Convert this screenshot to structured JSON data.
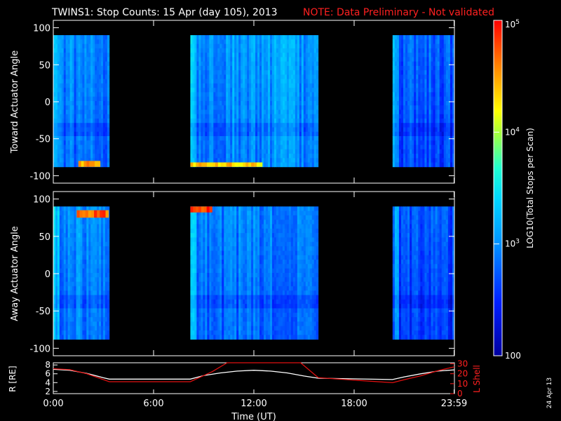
{
  "header": {
    "title": "TWINS1: Stop Counts: 15 Apr (day 105), 2013",
    "note": "NOTE: Data Preliminary - Not validated"
  },
  "side_date": "24 Apr 13",
  "colors": {
    "background": "#000000",
    "axes": "#ffffff",
    "note": "#ff2020",
    "r_line": "#ffffff",
    "lshell_line": "#e01010"
  },
  "colorbar": {
    "label": "LOG10(Total Stops per Scan)",
    "scale": "log",
    "range": [
      100,
      100000
    ],
    "ticks": [
      {
        "value": 100,
        "label": "100"
      },
      {
        "value": 1000,
        "label": "10^3"
      },
      {
        "value": 10000,
        "label": "10^4"
      },
      {
        "value": 100000,
        "label": "10^5"
      }
    ]
  },
  "chart_data": [
    {
      "type": "heatmap",
      "ylabel": "Toward Actuator Angle",
      "ylim": [
        -110,
        110
      ],
      "yticks": [
        100,
        50,
        0,
        -50,
        -100
      ],
      "xlim": [
        0,
        24
      ],
      "data_extent_y": [
        -88,
        90
      ],
      "segments": [
        {
          "start_hr": 0.0,
          "end_hr": 3.35,
          "typical_counts": 800,
          "max_counts": 30000
        },
        {
          "start_hr": 8.2,
          "end_hr": 15.85,
          "typical_counts": 1000,
          "max_counts": 40000
        },
        {
          "start_hr": 20.3,
          "end_hr": 24.0,
          "typical_counts": 500,
          "max_counts": 8000
        }
      ]
    },
    {
      "type": "heatmap",
      "ylabel": "Away Actuator Angle",
      "ylim": [
        -110,
        110
      ],
      "yticks": [
        100,
        50,
        0,
        -50,
        -100
      ],
      "xlim": [
        0,
        24
      ],
      "data_extent_y": [
        -88,
        90
      ],
      "segments": [
        {
          "start_hr": 0.0,
          "end_hr": 3.35,
          "typical_counts": 800,
          "max_counts": 90000
        },
        {
          "start_hr": 8.2,
          "end_hr": 15.85,
          "typical_counts": 700,
          "max_counts": 90000
        },
        {
          "start_hr": 20.3,
          "end_hr": 24.0,
          "typical_counts": 400,
          "max_counts": 10000
        }
      ]
    },
    {
      "type": "line",
      "xlabel": "Time (UT)",
      "xticks": [
        {
          "hr": 0,
          "label": "0:00"
        },
        {
          "hr": 6,
          "label": "6:00"
        },
        {
          "hr": 12,
          "label": "12:00"
        },
        {
          "hr": 18,
          "label": "18:00"
        },
        {
          "hr": 23.98,
          "label": "23:59"
        }
      ],
      "ylabel_left": "R [RE]",
      "ylim_left": [
        1.5,
        8.5
      ],
      "yticks_left": [
        2,
        4,
        6,
        8
      ],
      "ylabel_right": "L Shell",
      "ylim_right": [
        0,
        31
      ],
      "yticks_right": [
        0,
        10,
        20,
        30
      ],
      "series": [
        {
          "axis": "left",
          "x": [
            0,
            1,
            2,
            3,
            3.35,
            8.2,
            9,
            10,
            11,
            12,
            13,
            14,
            15,
            15.85,
            20.3,
            21,
            22,
            23,
            24
          ],
          "y": [
            7.0,
            6.8,
            6.1,
            5.1,
            4.8,
            4.8,
            5.6,
            6.2,
            6.6,
            6.8,
            6.6,
            6.2,
            5.5,
            5.0,
            4.7,
            5.3,
            6.0,
            6.6,
            6.9
          ]
        },
        {
          "axis": "right",
          "x": [
            0,
            1,
            2,
            3.35,
            8.2,
            9.5,
            10.4,
            10.5,
            14.8,
            15.85,
            20.3,
            21,
            22,
            23,
            24
          ],
          "y": [
            25,
            24,
            20,
            12,
            12,
            22,
            31,
            31,
            31,
            16,
            11,
            14,
            18,
            23,
            27
          ]
        }
      ]
    }
  ]
}
